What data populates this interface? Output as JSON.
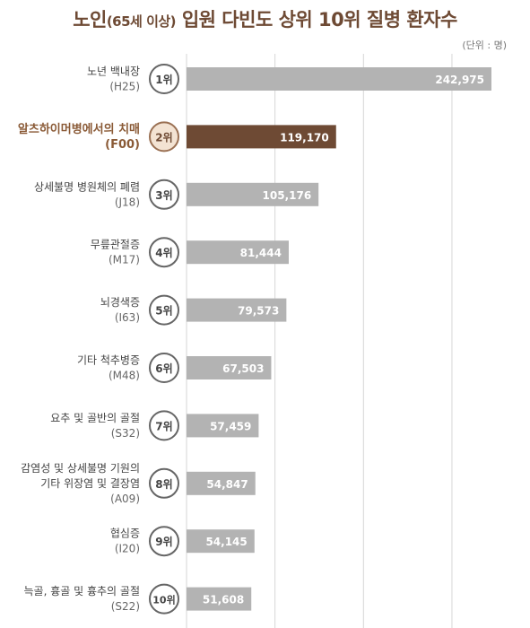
{
  "header": {
    "title_main_1": "노인",
    "title_paren": "(65세 이상)",
    "title_main_2": " 입원 다빈도 상위 10위 질병 환자수",
    "unit": "(단위 : 명)"
  },
  "colors": {
    "title": "#6e4a34",
    "bar_default": "#b3b3b3",
    "bar_highlight": "#6e4a34",
    "label_highlight": "#8a5a36",
    "label_default": "#444444",
    "badge_border_default": "#666666",
    "badge_fill_highlight": "#f3e3d3",
    "badge_border_highlight": "#9a7053",
    "grid": "#d6d6d6"
  },
  "chart_data": {
    "type": "bar",
    "orientation": "horizontal",
    "xlim": [
      0,
      270000
    ],
    "grid": true,
    "highlight_index": 1,
    "items": [
      {
        "rank": "1위",
        "name": [
          "노년 백내장"
        ],
        "code": "(H25)",
        "value": 242975,
        "value_label": "242,975"
      },
      {
        "rank": "2위",
        "name": [
          "알츠하이머병에서의 치매"
        ],
        "code": "(F00)",
        "value": 119170,
        "value_label": "119,170"
      },
      {
        "rank": "3위",
        "name": [
          "상세불명 병원체의 폐렴"
        ],
        "code": "(J18)",
        "value": 105176,
        "value_label": "105,176"
      },
      {
        "rank": "4위",
        "name": [
          "무릎관절증"
        ],
        "code": "(M17)",
        "value": 81444,
        "value_label": "81,444"
      },
      {
        "rank": "5위",
        "name": [
          "뇌경색증"
        ],
        "code": "(I63)",
        "value": 79573,
        "value_label": "79,573"
      },
      {
        "rank": "6위",
        "name": [
          "기타 척추병증"
        ],
        "code": "(M48)",
        "value": 67503,
        "value_label": "67,503"
      },
      {
        "rank": "7위",
        "name": [
          "요추 및 골반의 골절"
        ],
        "code": "(S32)",
        "value": 57459,
        "value_label": "57,459"
      },
      {
        "rank": "8위",
        "name": [
          "감염성 및 상세불명 기원의",
          "기타 위장염 및 결장염"
        ],
        "code": "(A09)",
        "value": 54847,
        "value_label": "54,847"
      },
      {
        "rank": "9위",
        "name": [
          "협심증"
        ],
        "code": "(I20)",
        "value": 54145,
        "value_label": "54,145"
      },
      {
        "rank": "10위",
        "name": [
          "늑골, 흉골 및 흉추의 골절"
        ],
        "code": "(S22)",
        "value": 51608,
        "value_label": "51,608"
      }
    ]
  }
}
